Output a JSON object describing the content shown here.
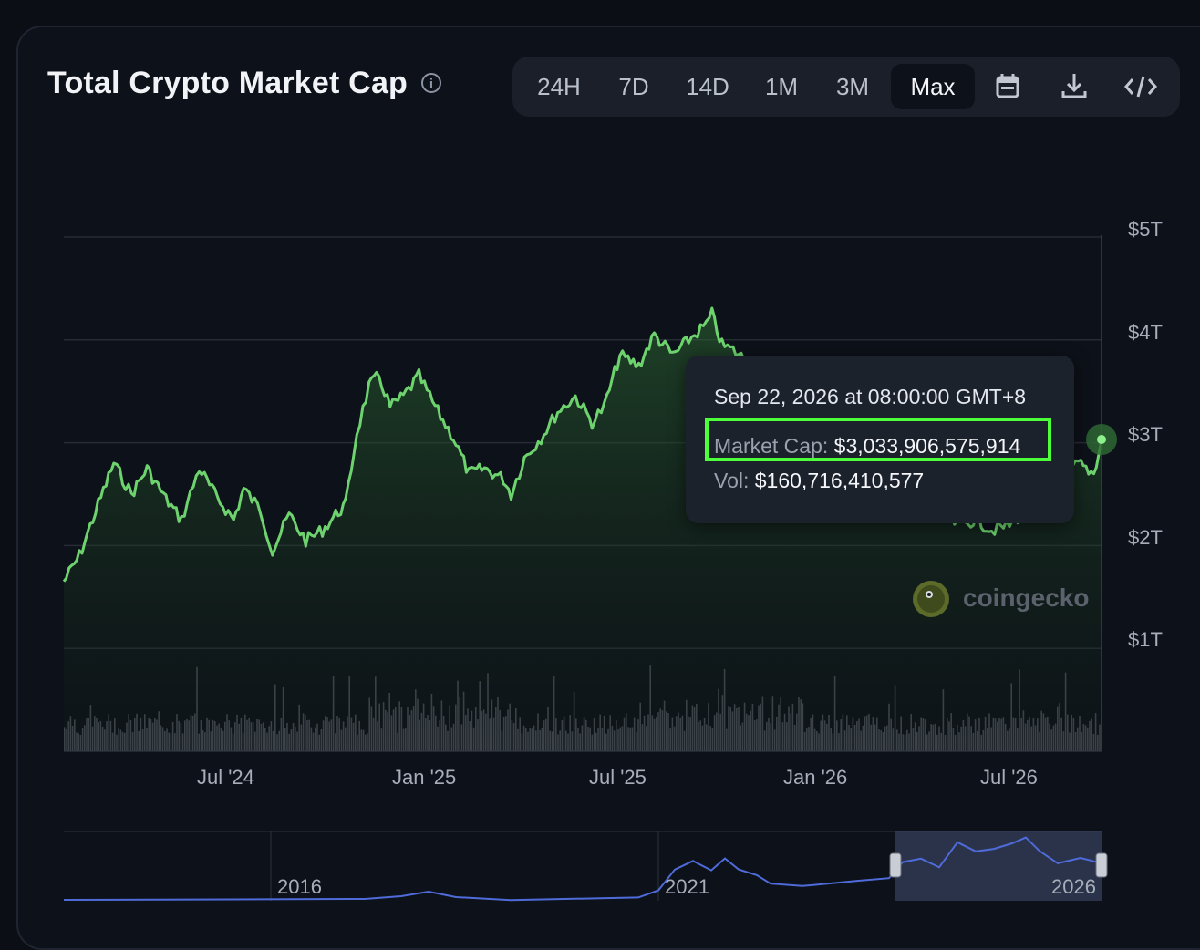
{
  "header": {
    "title": "Total Crypto Market Cap",
    "info_icon": "info-icon"
  },
  "toolbar": {
    "ranges": [
      "24H",
      "7D",
      "14D",
      "1M",
      "3M",
      "Max"
    ],
    "active_range": "Max",
    "icons": [
      "calendar-icon",
      "download-icon",
      "embed-code-icon"
    ]
  },
  "tooltip": {
    "date": "Sep 22, 2026 at 08:00:00 GMT+8",
    "market_cap_label": "Market Cap:",
    "market_cap_value": "$3,033,906,575,914",
    "vol_label": "Vol:",
    "vol_value": "$160,716,410,577"
  },
  "watermark": {
    "text": "coingecko"
  },
  "colors": {
    "line": "#6ed36e",
    "highlight": "#4dff3b",
    "navigator": "#4f6bd9",
    "volume": "#5a5f6a"
  },
  "chart_data": {
    "type": "area",
    "title": "Total Crypto Market Cap",
    "y_ticks": [
      "$1T",
      "$2T",
      "$3T",
      "$4T",
      "$5T"
    ],
    "ylim": [
      0,
      5
    ],
    "y_unit": "trillion USD",
    "x_ticks": [
      "Jul '24",
      "Jan '25",
      "Jul '25",
      "Jan '26",
      "Jul '26"
    ],
    "grid": true,
    "series": [
      {
        "values": [
          [
            "2024-03-01",
            1.65
          ],
          [
            "2024-03-15",
            1.9
          ],
          [
            "2024-04-01",
            2.4
          ],
          [
            "2024-04-15",
            2.8
          ],
          [
            "2024-05-01",
            2.5
          ],
          [
            "2024-05-15",
            2.75
          ],
          [
            "2024-06-01",
            2.45
          ],
          [
            "2024-06-15",
            2.25
          ],
          [
            "2024-07-01",
            2.75
          ],
          [
            "2024-07-15",
            2.5
          ],
          [
            "2024-08-01",
            2.25
          ],
          [
            "2024-08-10",
            2.55
          ],
          [
            "2024-08-25",
            2.35
          ],
          [
            "2024-09-05",
            1.95
          ],
          [
            "2024-09-20",
            2.3
          ],
          [
            "2024-10-05",
            2.05
          ],
          [
            "2024-10-20",
            2.15
          ],
          [
            "2024-11-01",
            2.3
          ],
          [
            "2024-11-10",
            2.4
          ],
          [
            "2024-11-20",
            3.1
          ],
          [
            "2024-12-01",
            3.55
          ],
          [
            "2024-12-10",
            3.65
          ],
          [
            "2024-12-20",
            3.35
          ],
          [
            "2025-01-01",
            3.45
          ],
          [
            "2025-01-15",
            3.65
          ],
          [
            "2025-02-01",
            3.3
          ],
          [
            "2025-02-15",
            3.05
          ],
          [
            "2025-03-01",
            2.7
          ],
          [
            "2025-03-15",
            2.75
          ],
          [
            "2025-04-01",
            2.65
          ],
          [
            "2025-04-08",
            2.5
          ],
          [
            "2025-04-20",
            2.85
          ],
          [
            "2025-05-05",
            3.05
          ],
          [
            "2025-05-20",
            3.3
          ],
          [
            "2025-06-05",
            3.45
          ],
          [
            "2025-06-20",
            3.2
          ],
          [
            "2025-07-01",
            3.35
          ],
          [
            "2025-07-15",
            3.85
          ],
          [
            "2025-08-01",
            3.75
          ],
          [
            "2025-08-15",
            4.05
          ],
          [
            "2025-09-01",
            3.85
          ],
          [
            "2025-09-15",
            4.0
          ],
          [
            "2025-10-01",
            4.15
          ],
          [
            "2025-10-06",
            4.25
          ],
          [
            "2025-10-15",
            3.95
          ],
          [
            "2025-10-25",
            3.9
          ],
          [
            "2026-05-15",
            2.2
          ],
          [
            "2026-06-01",
            2.25
          ],
          [
            "2026-06-15",
            2.15
          ],
          [
            "2026-07-01",
            2.2
          ],
          [
            "2026-08-15",
            2.65
          ],
          [
            "2026-09-01",
            2.8
          ],
          [
            "2026-09-15",
            2.7
          ],
          [
            "2026-09-22",
            3.03
          ]
        ]
      }
    ],
    "navigator": {
      "x_ticks": [
        "2016",
        "2021",
        "2026"
      ],
      "selected_range": [
        "2024-03-01",
        "2026-09-22"
      ]
    }
  }
}
